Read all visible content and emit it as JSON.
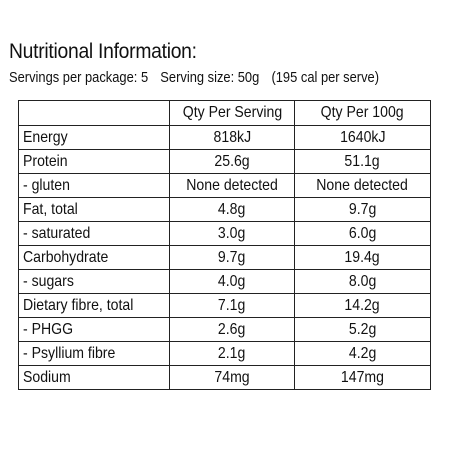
{
  "title": "Nutritional Information:",
  "servings": {
    "per_package": "Servings per package: 5",
    "size": "Serving size: 50g",
    "calories": "(195 cal per serve)"
  },
  "table": {
    "headers": [
      "",
      "Qty Per Serving",
      "Qty Per 100g"
    ],
    "rows": [
      {
        "label": "Energy",
        "per_serving": "818kJ",
        "per_100g": "1640kJ"
      },
      {
        "label": "Protein",
        "per_serving": "25.6g",
        "per_100g": "51.1g"
      },
      {
        "label": "- gluten",
        "per_serving": "None detected",
        "per_100g": "None detected"
      },
      {
        "label": "Fat, total",
        "per_serving": "4.8g",
        "per_100g": "9.7g"
      },
      {
        "label": "- saturated",
        "per_serving": "3.0g",
        "per_100g": "6.0g"
      },
      {
        "label": "Carbohydrate",
        "per_serving": "9.7g",
        "per_100g": "19.4g"
      },
      {
        "label": "- sugars",
        "per_serving": "4.0g",
        "per_100g": "8.0g"
      },
      {
        "label": "Dietary fibre, total",
        "per_serving": "7.1g",
        "per_100g": "14.2g"
      },
      {
        "label": "- PHGG",
        "per_serving": "2.6g",
        "per_100g": "5.2g"
      },
      {
        "label": "- Psyllium fibre",
        "per_serving": "2.1g",
        "per_100g": "4.2g"
      },
      {
        "label": "Sodium",
        "per_serving": "74mg",
        "per_100g": "147mg"
      }
    ]
  }
}
